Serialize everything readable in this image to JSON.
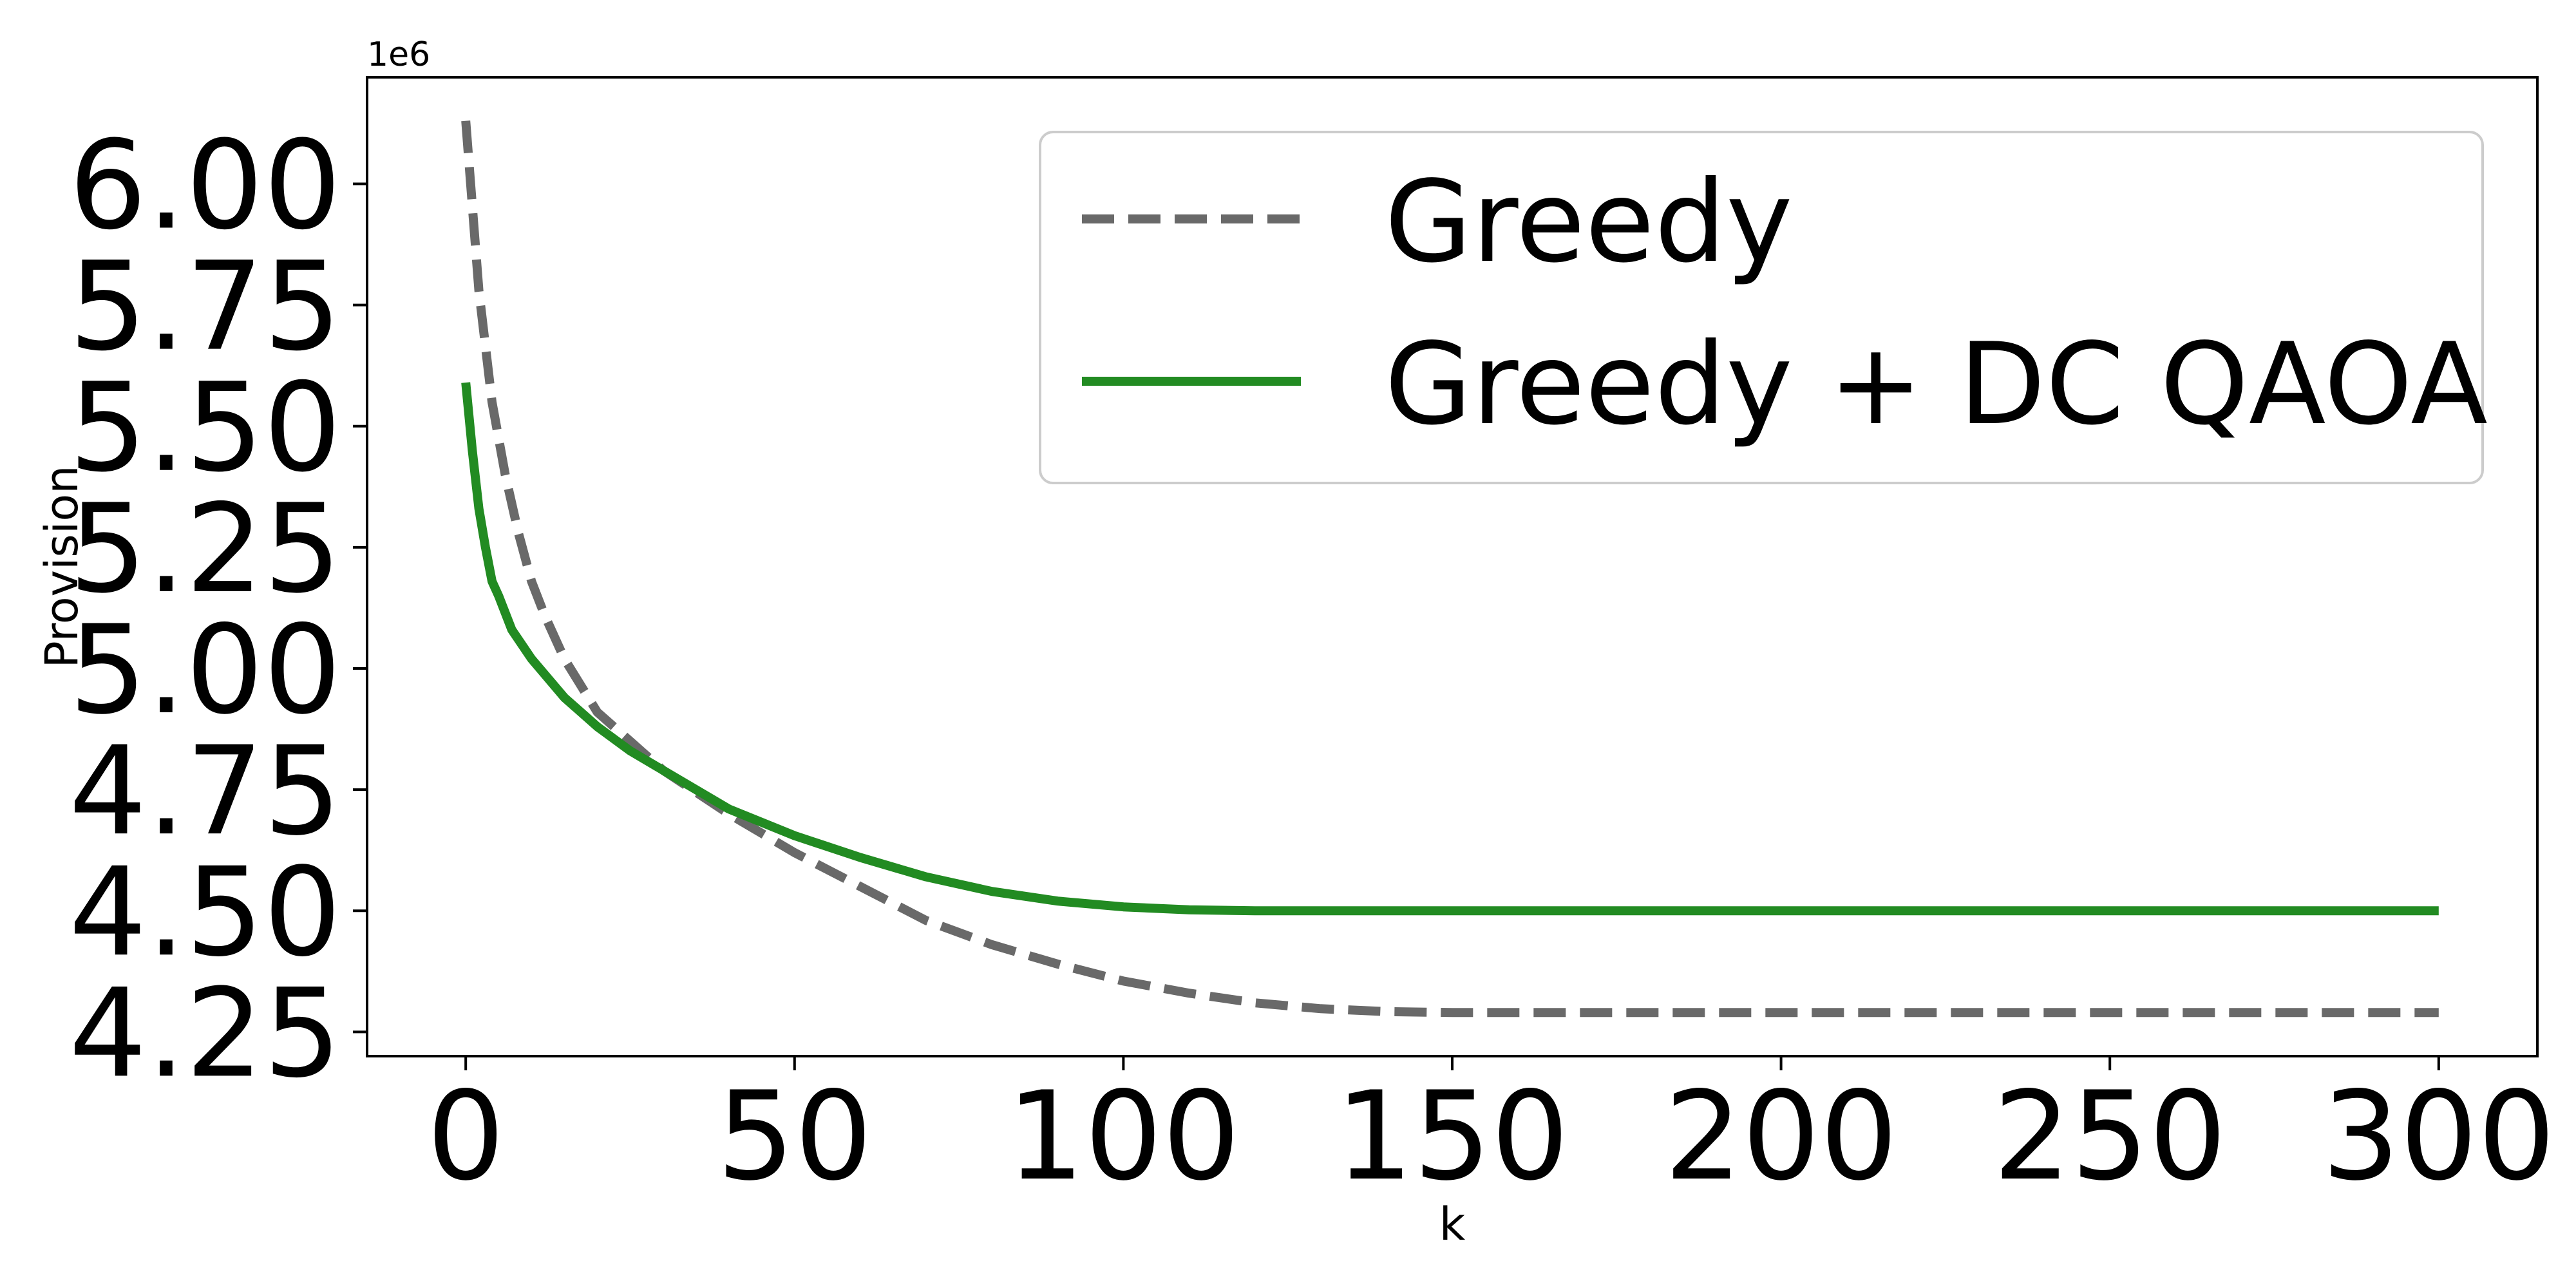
{
  "chart_data": {
    "type": "line",
    "xlabel": "k",
    "ylabel": "Provision",
    "y_offset_label": "1e6",
    "y_scale": 1000000,
    "xlim": [
      -15,
      315
    ],
    "ylim": [
      4200000,
      6220000
    ],
    "x_ticks": [
      0,
      50,
      100,
      150,
      200,
      250,
      300
    ],
    "x_tick_labels": [
      "0",
      "50",
      "100",
      "150",
      "200",
      "250",
      "300"
    ],
    "y_ticks": [
      4250000,
      4500000,
      4750000,
      5000000,
      5250000,
      5500000,
      5750000,
      6000000
    ],
    "y_tick_labels": [
      "4.25",
      "4.50",
      "4.75",
      "5.00",
      "5.25",
      "5.50",
      "5.75",
      "6.00"
    ],
    "grid": false,
    "legend": {
      "position": "top-right"
    },
    "series": [
      {
        "name": "Greedy",
        "color": "#696969",
        "style": "dashed",
        "x": [
          0,
          2,
          4,
          6,
          8,
          10,
          12,
          15,
          20,
          25,
          30,
          40,
          50,
          60,
          70,
          80,
          90,
          100,
          110,
          120,
          130,
          140,
          150,
          175,
          200,
          250,
          300
        ],
        "y": [
          6130000,
          5780000,
          5550000,
          5400000,
          5280000,
          5180000,
          5110000,
          5020000,
          4910000,
          4850000,
          4790000,
          4700000,
          4620000,
          4550000,
          4480000,
          4430000,
          4390000,
          4355000,
          4330000,
          4310000,
          4298000,
          4292000,
          4290000,
          4290000,
          4290000,
          4290000,
          4290000
        ]
      },
      {
        "name": "Greedy + DC QAOA",
        "color": "#228b22",
        "style": "solid",
        "x": [
          0,
          1,
          2,
          3,
          4,
          5,
          7,
          10,
          15,
          20,
          25,
          30,
          40,
          50,
          60,
          70,
          80,
          90,
          100,
          110,
          120,
          130,
          150,
          200,
          250,
          300
        ],
        "y": [
          5590000,
          5450000,
          5330000,
          5250000,
          5180000,
          5150000,
          5080000,
          5020000,
          4940000,
          4880000,
          4830000,
          4790000,
          4710000,
          4655000,
          4610000,
          4570000,
          4540000,
          4520000,
          4508000,
          4502000,
          4500000,
          4500000,
          4500000,
          4500000,
          4500000,
          4500000
        ]
      }
    ]
  }
}
